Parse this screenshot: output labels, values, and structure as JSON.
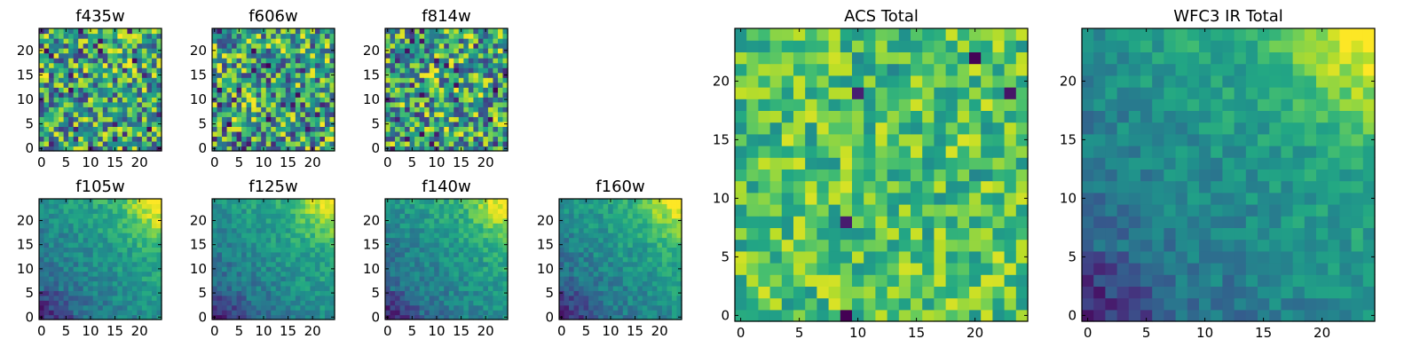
{
  "chart_data": [
    {
      "type": "heatmap",
      "title": "f435w",
      "xticks": [
        "0",
        "5",
        "10",
        "15",
        "20"
      ],
      "yticks": [
        "0",
        "5",
        "10",
        "15",
        "20"
      ],
      "xlim": [
        0,
        24
      ],
      "ylim": [
        0,
        24
      ],
      "grid": false,
      "colormap": "viridis",
      "texture": "noisy",
      "seed": 11
    },
    {
      "type": "heatmap",
      "title": "f606w",
      "xticks": [
        "0",
        "5",
        "10",
        "15",
        "20"
      ],
      "yticks": [
        "0",
        "5",
        "10",
        "15",
        "20"
      ],
      "xlim": [
        0,
        24
      ],
      "ylim": [
        0,
        24
      ],
      "grid": false,
      "colormap": "viridis",
      "texture": "noisy",
      "seed": 23
    },
    {
      "type": "heatmap",
      "title": "f814w",
      "xticks": [
        "0",
        "5",
        "10",
        "15",
        "20"
      ],
      "yticks": [
        "0",
        "5",
        "10",
        "15",
        "20"
      ],
      "xlim": [
        0,
        24
      ],
      "ylim": [
        0,
        24
      ],
      "grid": false,
      "colormap": "viridis",
      "texture": "noisy",
      "seed": 37
    },
    {
      "type": "heatmap",
      "title": "f105w",
      "xticks": [
        "0",
        "5",
        "10",
        "15",
        "20"
      ],
      "yticks": [
        "0",
        "5",
        "10",
        "15",
        "20"
      ],
      "xlim": [
        0,
        24
      ],
      "ylim": [
        0,
        24
      ],
      "grid": false,
      "colormap": "viridis",
      "texture": "smooth-gradient",
      "seed": 41
    },
    {
      "type": "heatmap",
      "title": "f125w",
      "xticks": [
        "0",
        "5",
        "10",
        "15",
        "20"
      ],
      "yticks": [
        "0",
        "5",
        "10",
        "15",
        "20"
      ],
      "xlim": [
        0,
        24
      ],
      "ylim": [
        0,
        24
      ],
      "grid": false,
      "colormap": "viridis",
      "texture": "smooth-gradient",
      "seed": 53
    },
    {
      "type": "heatmap",
      "title": "f140w",
      "xticks": [
        "0",
        "5",
        "10",
        "15",
        "20"
      ],
      "yticks": [
        "0",
        "5",
        "10",
        "15",
        "20"
      ],
      "xlim": [
        0,
        24
      ],
      "ylim": [
        0,
        24
      ],
      "grid": false,
      "colormap": "viridis",
      "texture": "smooth-gradient",
      "seed": 67
    },
    {
      "type": "heatmap",
      "title": "f160w",
      "xticks": [
        "0",
        "5",
        "10",
        "15",
        "20"
      ],
      "yticks": [
        "0",
        "5",
        "10",
        "15",
        "20"
      ],
      "xlim": [
        0,
        24
      ],
      "ylim": [
        0,
        24
      ],
      "grid": false,
      "colormap": "viridis",
      "texture": "smooth-gradient",
      "seed": 79
    },
    {
      "type": "heatmap",
      "title": "ACS Total",
      "xticks": [
        "0",
        "5",
        "10",
        "15",
        "20"
      ],
      "yticks": [
        "0",
        "5",
        "10",
        "15",
        "20"
      ],
      "xlim": [
        0,
        24
      ],
      "ylim": [
        0,
        24
      ],
      "grid": false,
      "colormap": "viridis",
      "texture": "noisy-bright",
      "seed": 97
    },
    {
      "type": "heatmap",
      "title": "WFC3 IR Total",
      "xticks": [
        "0",
        "5",
        "10",
        "15",
        "20"
      ],
      "yticks": [
        "0",
        "5",
        "10",
        "15",
        "20"
      ],
      "xlim": [
        0,
        24
      ],
      "ylim": [
        0,
        24
      ],
      "grid": false,
      "colormap": "viridis",
      "texture": "smooth-gradient",
      "seed": 101
    }
  ]
}
